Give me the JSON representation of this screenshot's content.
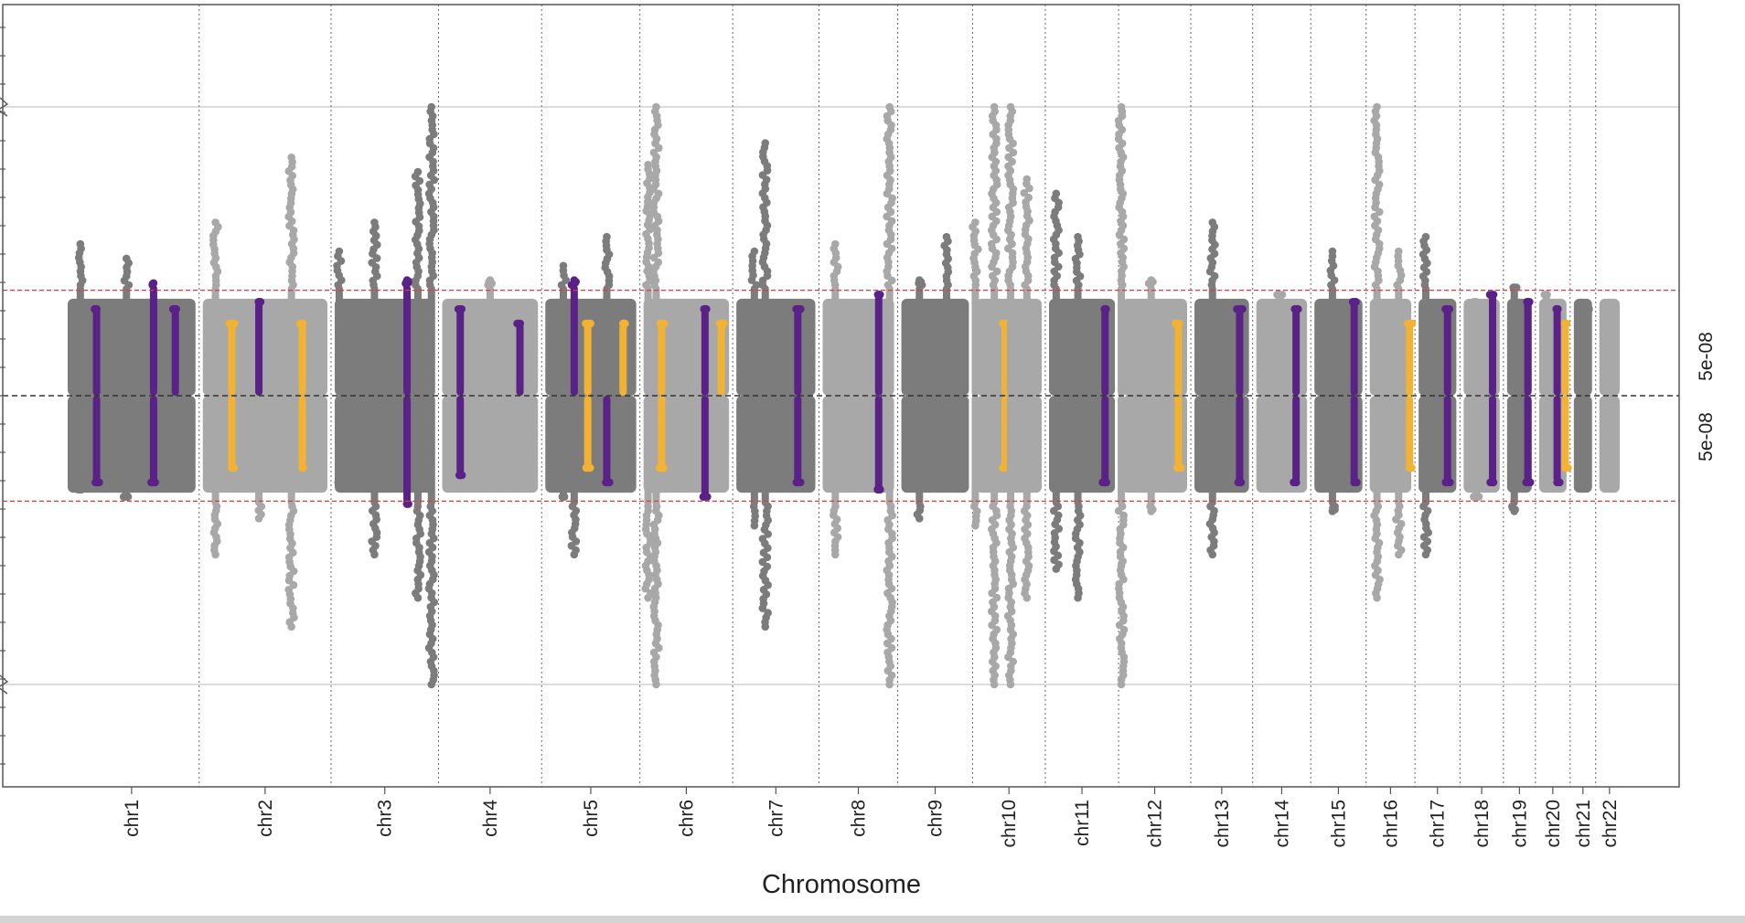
{
  "chart_data": {
    "type": "scatter",
    "subtype": "miami-plot",
    "xlabel": "Chromosome",
    "ylabel": "",
    "categories": [
      "chr1",
      "chr2",
      "chr3",
      "chr4",
      "chr5",
      "chr6",
      "chr7",
      "chr8",
      "chr9",
      "chr10",
      "chr11",
      "chr12",
      "chr13",
      "chr14",
      "chr15",
      "chr16",
      "chr17",
      "chr18",
      "chr19",
      "chr20",
      "chr21",
      "chr22"
    ],
    "chromosome_lengths_mb": [
      249,
      243,
      198,
      190,
      181,
      171,
      159,
      145,
      138,
      134,
      135,
      133,
      114,
      107,
      102,
      90,
      83,
      80,
      59,
      64,
      47,
      51
    ],
    "threshold": {
      "label": "5e-08",
      "neglog10p": 7.3,
      "color": "#e03a3a",
      "style": "dashed"
    },
    "threshold_labels": [
      "5e-08",
      "5e-08"
    ],
    "axis_break_neglog10p": 20,
    "grid": {
      "vertical_chromosome_boundaries": true,
      "horizontal_lines_at": [
        20
      ]
    },
    "colors": {
      "chrom_odd": "#7c7c7c",
      "chrom_even": "#a8a8a8",
      "highlight_primary": "#5a2187",
      "highlight_secondary": "#f2b233"
    },
    "series": [
      {
        "name": "",
        "direction": "up",
        "peaks": [
          [
            1,
            30,
            10.5,
            "gray"
          ],
          [
            1,
            60,
            6,
            "purple"
          ],
          [
            1,
            115,
            9.5,
            "gray"
          ],
          [
            1,
            165,
            7.8,
            "purple"
          ],
          [
            1,
            205,
            6,
            "purple"
          ],
          [
            2,
            30,
            12,
            "gray"
          ],
          [
            2,
            60,
            5,
            "orange"
          ],
          [
            2,
            110,
            6.5,
            "purple"
          ],
          [
            2,
            170,
            16.5,
            "gray"
          ],
          [
            2,
            190,
            5,
            "orange"
          ],
          [
            3,
            15,
            10,
            "gray"
          ],
          [
            3,
            80,
            12,
            "gray"
          ],
          [
            3,
            140,
            8,
            "purple"
          ],
          [
            3,
            160,
            15.5,
            "gray"
          ],
          [
            3,
            185,
            20,
            "gray"
          ],
          [
            4,
            40,
            6,
            "purple"
          ],
          [
            4,
            95,
            8,
            "gray"
          ],
          [
            4,
            150,
            5,
            "purple"
          ],
          [
            5,
            40,
            9,
            "gray"
          ],
          [
            5,
            60,
            8,
            "purple"
          ],
          [
            5,
            85,
            5,
            "orange"
          ],
          [
            5,
            120,
            11,
            "gray"
          ],
          [
            5,
            150,
            5,
            "orange"
          ],
          [
            6,
            15,
            16,
            "gray"
          ],
          [
            6,
            30,
            20,
            "gray"
          ],
          [
            6,
            40,
            5,
            "orange"
          ],
          [
            6,
            120,
            6,
            "purple"
          ],
          [
            6,
            150,
            5,
            "orange"
          ],
          [
            7,
            40,
            10,
            "gray"
          ],
          [
            7,
            60,
            17.5,
            "gray"
          ],
          [
            7,
            120,
            6,
            "purple"
          ],
          [
            8,
            30,
            10.5,
            "gray"
          ],
          [
            8,
            110,
            7,
            "purple"
          ],
          [
            8,
            130,
            20,
            "gray"
          ],
          [
            9,
            40,
            8,
            "gray"
          ],
          [
            9,
            90,
            11,
            "gray"
          ],
          [
            10,
            5,
            12,
            "gray"
          ],
          [
            10,
            40,
            20,
            "gray"
          ],
          [
            10,
            60,
            5,
            "orange"
          ],
          [
            10,
            70,
            20,
            "gray"
          ],
          [
            10,
            100,
            15,
            "gray"
          ],
          [
            11,
            20,
            14,
            "gray"
          ],
          [
            11,
            60,
            11,
            "gray"
          ],
          [
            11,
            110,
            6,
            "purple"
          ],
          [
            12,
            5,
            20,
            "gray"
          ],
          [
            12,
            60,
            8,
            "gray"
          ],
          [
            12,
            110,
            5,
            "orange"
          ],
          [
            13,
            40,
            12,
            "gray"
          ],
          [
            13,
            90,
            6,
            "purple"
          ],
          [
            14,
            50,
            7,
            "gray"
          ],
          [
            14,
            80,
            6,
            "purple"
          ],
          [
            15,
            40,
            10,
            "gray"
          ],
          [
            15,
            80,
            6.5,
            "purple"
          ],
          [
            16,
            20,
            20,
            "gray"
          ],
          [
            16,
            60,
            10,
            "gray"
          ],
          [
            16,
            80,
            5,
            "orange"
          ],
          [
            17,
            20,
            11,
            "gray"
          ],
          [
            17,
            60,
            6,
            "purple"
          ],
          [
            18,
            30,
            6.5,
            "gray"
          ],
          [
            18,
            60,
            7,
            "purple"
          ],
          [
            19,
            20,
            7.5,
            "gray"
          ],
          [
            19,
            45,
            6.5,
            "purple"
          ],
          [
            20,
            20,
            7,
            "gray"
          ],
          [
            20,
            40,
            6,
            "purple"
          ],
          [
            20,
            55,
            5,
            "orange"
          ],
          [
            21,
            30,
            6,
            "gray"
          ],
          [
            22,
            25,
            6,
            "gray"
          ]
        ]
      },
      {
        "name": "",
        "direction": "down",
        "peaks": [
          [
            1,
            30,
            6.5,
            "gray"
          ],
          [
            1,
            60,
            6,
            "purple"
          ],
          [
            1,
            115,
            7,
            "gray"
          ],
          [
            1,
            165,
            6,
            "purple"
          ],
          [
            2,
            30,
            11,
            "gray"
          ],
          [
            2,
            60,
            5,
            "orange"
          ],
          [
            2,
            110,
            8.5,
            "gray"
          ],
          [
            2,
            170,
            16,
            "gray"
          ],
          [
            2,
            190,
            5,
            "orange"
          ],
          [
            3,
            15,
            6,
            "gray"
          ],
          [
            3,
            80,
            11,
            "gray"
          ],
          [
            3,
            140,
            7.5,
            "purple"
          ],
          [
            3,
            160,
            14,
            "gray"
          ],
          [
            3,
            185,
            20,
            "gray"
          ],
          [
            4,
            40,
            5.5,
            "purple"
          ],
          [
            4,
            95,
            6,
            "gray"
          ],
          [
            5,
            40,
            7,
            "gray"
          ],
          [
            5,
            60,
            11,
            "gray"
          ],
          [
            5,
            85,
            5,
            "orange"
          ],
          [
            5,
            120,
            6,
            "purple"
          ],
          [
            6,
            15,
            14,
            "gray"
          ],
          [
            6,
            30,
            20,
            "gray"
          ],
          [
            6,
            40,
            5,
            "orange"
          ],
          [
            6,
            120,
            7,
            "purple"
          ],
          [
            7,
            40,
            9,
            "gray"
          ],
          [
            7,
            60,
            16,
            "gray"
          ],
          [
            7,
            120,
            6,
            "purple"
          ],
          [
            8,
            30,
            11,
            "gray"
          ],
          [
            8,
            110,
            6.5,
            "purple"
          ],
          [
            8,
            130,
            20,
            "gray"
          ],
          [
            9,
            40,
            8.5,
            "gray"
          ],
          [
            9,
            90,
            5.5,
            "gray"
          ],
          [
            10,
            5,
            9,
            "gray"
          ],
          [
            10,
            40,
            20,
            "gray"
          ],
          [
            10,
            60,
            5,
            "orange"
          ],
          [
            10,
            70,
            20,
            "gray"
          ],
          [
            10,
            100,
            14,
            "gray"
          ],
          [
            11,
            20,
            12,
            "gray"
          ],
          [
            11,
            60,
            14,
            "gray"
          ],
          [
            11,
            110,
            6,
            "purple"
          ],
          [
            12,
            5,
            20,
            "gray"
          ],
          [
            12,
            60,
            8,
            "gray"
          ],
          [
            12,
            110,
            5,
            "orange"
          ],
          [
            13,
            40,
            11,
            "gray"
          ],
          [
            13,
            90,
            6,
            "purple"
          ],
          [
            14,
            50,
            6,
            "gray"
          ],
          [
            14,
            80,
            6,
            "purple"
          ],
          [
            15,
            40,
            8,
            "gray"
          ],
          [
            15,
            80,
            6,
            "purple"
          ],
          [
            16,
            20,
            14,
            "gray"
          ],
          [
            16,
            60,
            11,
            "gray"
          ],
          [
            16,
            80,
            5,
            "orange"
          ],
          [
            17,
            20,
            11,
            "gray"
          ],
          [
            17,
            60,
            6,
            "purple"
          ],
          [
            18,
            30,
            7,
            "gray"
          ],
          [
            18,
            60,
            6,
            "purple"
          ],
          [
            19,
            20,
            8,
            "gray"
          ],
          [
            19,
            45,
            6,
            "purple"
          ],
          [
            20,
            20,
            5.5,
            "gray"
          ],
          [
            20,
            40,
            6,
            "purple"
          ],
          [
            20,
            55,
            5,
            "orange"
          ],
          [
            21,
            30,
            6,
            "gray"
          ],
          [
            22,
            25,
            5,
            "gray"
          ]
        ]
      }
    ]
  }
}
